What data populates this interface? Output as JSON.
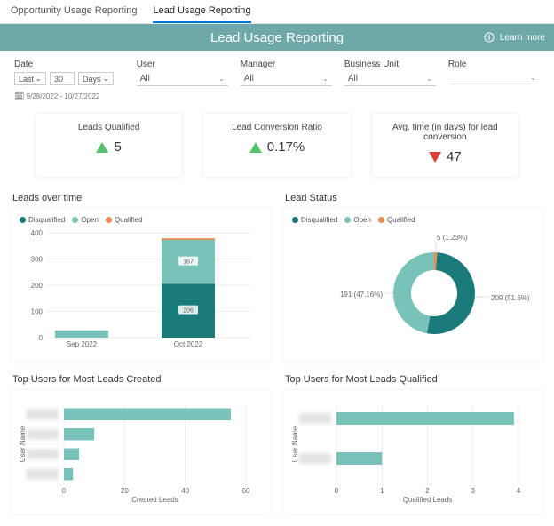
{
  "tabs": {
    "opportunity": "Opportunity Usage Reporting",
    "lead": "Lead Usage Reporting"
  },
  "banner": {
    "title": "Lead Usage Reporting",
    "learn_more": "Learn more"
  },
  "filters": {
    "date_label": "Date",
    "date_last": "Last",
    "date_num": "30",
    "date_unit": "Days",
    "date_range": "9/28/2022 - 10/27/2022",
    "user_label": "User",
    "user_value": "All",
    "manager_label": "Manager",
    "manager_value": "All",
    "bu_label": "Business Unit",
    "bu_value": "All",
    "role_label": "Role",
    "role_value": ""
  },
  "kpis": {
    "k1_title": "Leads Qualified",
    "k1_value": "5",
    "k2_title": "Lead Conversion Ratio",
    "k2_value": "0.17%",
    "k3_title": "Avg. time (in days) for lead conversion",
    "k3_value": "47"
  },
  "colors": {
    "disqualified": "#1b7b7b",
    "open": "#79c2b9",
    "qualified": "#e98b52",
    "bar": "#79c2b9",
    "axis": "#dcdcdc",
    "tick_text": "#888"
  },
  "leads_over_time": {
    "title": "Leads over time",
    "legend": [
      "Disqualified",
      "Open",
      "Qualified"
    ],
    "y_max": 400,
    "y_ticks": [
      0,
      100,
      200,
      300,
      400
    ],
    "categories": [
      "Sep 2022",
      "Oct 2022"
    ],
    "series": {
      "disqualified": [
        0,
        206
      ],
      "open": [
        28,
        167
      ],
      "qualified": [
        0,
        6
      ]
    },
    "labels": {
      "disq": "206",
      "open": "167"
    }
  },
  "lead_status": {
    "title": "Lead Status",
    "legend": [
      "Disqualified",
      "Open",
      "Qualified"
    ],
    "slices": [
      {
        "label": "209 (51.6%)",
        "value": 51.6,
        "color": "#1b7b7b"
      },
      {
        "label": "191 (47.16%)",
        "value": 47.16,
        "color": "#79c2b9"
      },
      {
        "label": "5 (1.23%)",
        "value": 1.23,
        "color": "#e98b52"
      }
    ]
  },
  "top_created": {
    "title": "Top Users for Most Leads Created",
    "ylabel": "User Name",
    "xlabel": "Created Leads",
    "x_max": 60,
    "x_ticks": [
      0,
      20,
      40,
      60
    ],
    "values": [
      55,
      10,
      5,
      3
    ]
  },
  "top_qualified": {
    "title": "Top Users for Most Leads Qualified",
    "ylabel": "User Name",
    "xlabel": "Qualified Leads",
    "x_max": 4,
    "x_ticks": [
      0,
      1,
      2,
      3,
      4
    ],
    "values": [
      3.9,
      1.0
    ]
  }
}
